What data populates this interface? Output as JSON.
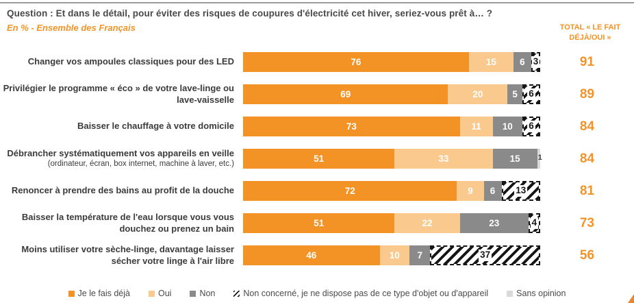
{
  "header": {
    "question": "Question : Et dans le détail, pour éviter des risques de coupures d'électricité cet hiver, seriez-vous prêt à… ?",
    "subtitle": "En % - Ensemble des Français",
    "total_column_label": "TOTAL « LE FAIT DÉJÀ/OUI »"
  },
  "colors": {
    "accent_orange": "#F39325",
    "light_orange": "#FAC98E",
    "gray": "#8A8A8A",
    "light_gray": "#D9D9D9",
    "hatch_black": "#161616",
    "title_text": "#484848"
  },
  "chart_data": {
    "type": "bar",
    "variant": "horizontal-stacked",
    "unit": "%",
    "xlim": [
      0,
      100
    ],
    "grid": false,
    "legend_position": "bottom",
    "series": [
      {
        "key": "deja",
        "name": "Je le fais déjà",
        "color": "#F39325",
        "pattern": "solid"
      },
      {
        "key": "oui",
        "name": "Oui",
        "color": "#FAC98E",
        "pattern": "solid"
      },
      {
        "key": "non",
        "name": "Non",
        "color": "#8A8A8A",
        "pattern": "solid"
      },
      {
        "key": "nonconcerne",
        "name": "Non concerné, je ne dispose pas de ce type d'objet ou d'appareil",
        "color": "#161616",
        "pattern": "diagonal-hatch"
      },
      {
        "key": "sansopinion",
        "name": "Sans opinion",
        "color": "#D9D9D9",
        "pattern": "solid"
      }
    ],
    "rows": [
      {
        "label": "Changer vos ampoules classiques pour des LED",
        "sublabel": "",
        "values": [
          76,
          15,
          6,
          3,
          0
        ],
        "total": 91
      },
      {
        "label": "Privilégier le programme « éco » de votre lave-linge ou lave-vaisselle",
        "sublabel": "",
        "values": [
          69,
          20,
          5,
          6,
          0
        ],
        "total": 89
      },
      {
        "label": "Baisser le chauffage à votre domicile",
        "sublabel": "",
        "values": [
          73,
          11,
          10,
          6,
          0
        ],
        "total": 84
      },
      {
        "label": "Débrancher systématiquement vos appareils en veille",
        "sublabel": "(ordinateur, écran, box internet, machine à laver, etc.)",
        "values": [
          51,
          33,
          15,
          0,
          1
        ],
        "total": 84
      },
      {
        "label": "Renoncer à prendre des bains au profit de la douche",
        "sublabel": "",
        "values": [
          72,
          9,
          6,
          13,
          0
        ],
        "total": 81
      },
      {
        "label": "Baisser la température de l'eau lorsque vous vous douchez ou prenez un bain",
        "sublabel": "",
        "values": [
          51,
          22,
          23,
          4,
          0
        ],
        "total": 73
      },
      {
        "label": "Moins utiliser votre sèche-linge, davantage laisser sécher votre linge à l'air libre",
        "sublabel": "",
        "values": [
          46,
          10,
          7,
          37,
          0
        ],
        "total": 56
      }
    ]
  },
  "legend": {
    "items": [
      {
        "label": "Je le fais déjà",
        "swatch": "deja"
      },
      {
        "label": "Oui",
        "swatch": "oui"
      },
      {
        "label": "Non",
        "swatch": "non"
      },
      {
        "label": "Non concerné, je ne dispose pas de ce type d'objet ou d'appareil",
        "swatch": "nonconcerne"
      },
      {
        "label": "Sans opinion",
        "swatch": "sansopinion"
      }
    ]
  }
}
